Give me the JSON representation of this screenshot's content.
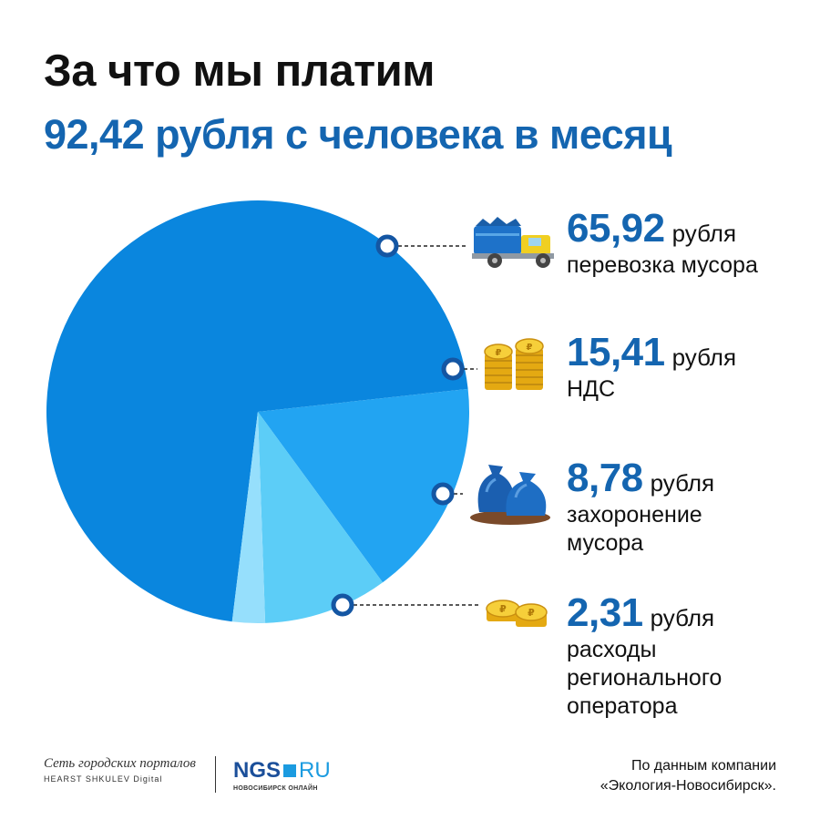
{
  "title": "За что мы платим",
  "subtitle": "92,42 рубля с человека в месяц",
  "chart_data": {
    "type": "pie",
    "total": 92.42,
    "slices": [
      {
        "value": 65.92,
        "label_value": "65,92",
        "unit": "рубля",
        "label": "перевозка мусора",
        "color": "#0a86de",
        "icon": "garbage-truck-icon"
      },
      {
        "value": 15.41,
        "label_value": "15,41",
        "unit": "рубля",
        "label": "НДС",
        "color": "#22a4f2",
        "icon": "coin-stacks-icon"
      },
      {
        "value": 8.78,
        "label_value": "8,78",
        "unit": "рубля",
        "label": "захоронение мусора",
        "color": "#5ccdf7",
        "icon": "garbage-bags-icon"
      },
      {
        "value": 2.31,
        "label_value": "2,31",
        "unit": "рубля",
        "label": "расходы регионального оператора",
        "color": "#96dffc",
        "icon": "coins-icon"
      }
    ]
  },
  "footer": {
    "network_name": "Сеть городских порталов",
    "network_sub": "HEARST SHKULEV Digital",
    "ngs_brand": "NGS",
    "ngs_domain": "RU",
    "ngs_city": "НОВОСИБИРСК ОНЛАЙН",
    "source_line1": "По данным компании",
    "source_line2": "«Экология-Новосибирск»."
  }
}
